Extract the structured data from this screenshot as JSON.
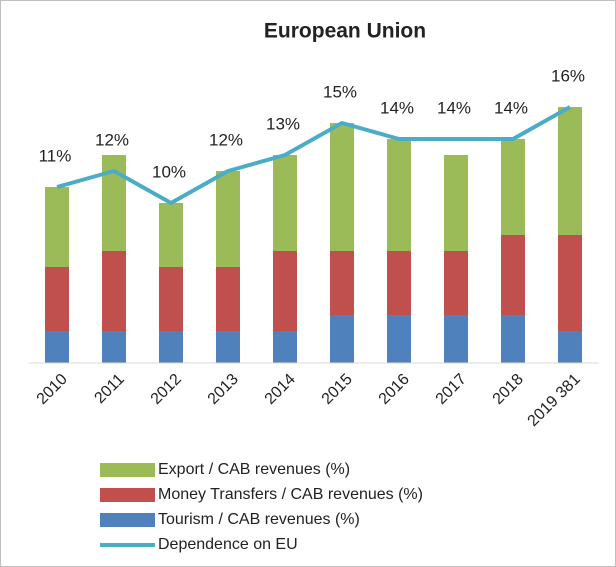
{
  "chart_data": {
    "type": "bar",
    "title": "European Union",
    "categories": [
      "2010",
      "2011",
      "2012",
      "2013",
      "2014",
      "2015",
      "2016",
      "2017",
      "2018",
      "2019 381"
    ],
    "series": [
      {
        "name": "Export / CAB revenues (%)",
        "color": "#9bbb59",
        "values": [
          5,
          6,
          4,
          6,
          6,
          8,
          7,
          6,
          6,
          8
        ]
      },
      {
        "name": "Money Transfers / CAB revenues (%)",
        "color": "#c0504d",
        "values": [
          4,
          5,
          4,
          4,
          5,
          4,
          4,
          4,
          5,
          6
        ]
      },
      {
        "name": "Tourism / CAB revenues (%)",
        "color": "#4f81bd",
        "values": [
          2,
          2,
          2,
          2,
          2,
          3,
          3,
          3,
          3,
          2
        ]
      },
      {
        "name": "Dependence on EU",
        "color": "#4bacc6",
        "type": "line",
        "values": [
          11,
          12,
          10,
          12,
          13,
          15,
          14,
          14,
          14,
          16
        ],
        "value_labels": [
          "11%",
          "12%",
          "10%",
          "12%",
          "13%",
          "15%",
          "14%",
          "14%",
          "14%",
          "16%"
        ]
      }
    ],
    "ylim": [
      0,
      18
    ],
    "stacked": true
  }
}
